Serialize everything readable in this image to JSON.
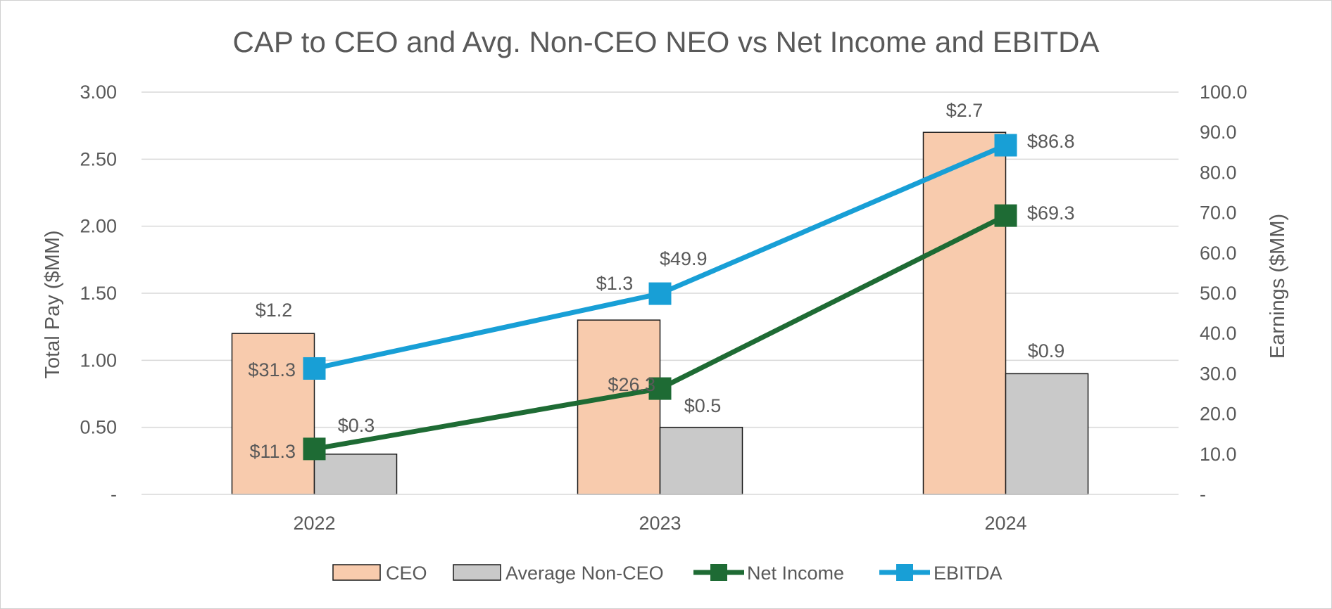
{
  "chart_data": {
    "type": "bar",
    "title": "CAP to CEO and Avg. Non-CEO NEO vs Net Income and EBITDA",
    "categories": [
      "2022",
      "2023",
      "2024"
    ],
    "y_left": {
      "label": "Total Pay ($MM)",
      "range": [
        0,
        3
      ],
      "ticks": [
        0,
        0.5,
        1,
        1.5,
        2,
        2.5,
        3
      ],
      "tick_labels": [
        "-",
        "0.50",
        "1.00",
        "1.50",
        "2.00",
        "2.50",
        "3.00"
      ]
    },
    "y_right": {
      "label": "Earnings ($MM)",
      "range": [
        0,
        100
      ],
      "ticks": [
        0,
        10,
        20,
        30,
        40,
        50,
        60,
        70,
        80,
        90,
        100
      ],
      "tick_labels": [
        "-",
        "10.0",
        "20.0",
        "30.0",
        "40.0",
        "50.0",
        "60.0",
        "70.0",
        "80.0",
        "90.0",
        "100.0"
      ]
    },
    "grid": true,
    "legend_position": "bottom",
    "series": [
      {
        "name": "CEO",
        "kind": "bar",
        "axis": "left",
        "color": "#F8CBAD",
        "values": [
          1.2,
          1.3,
          2.7
        ],
        "labels": [
          "$1.2",
          "$1.3",
          "$2.7"
        ]
      },
      {
        "name": "Average Non-CEO",
        "kind": "bar",
        "axis": "left",
        "color": "#C9C9C9",
        "values": [
          0.3,
          0.5,
          0.9
        ],
        "labels": [
          "$0.3",
          "$0.5",
          "$0.9"
        ]
      },
      {
        "name": "Net Income",
        "kind": "line",
        "axis": "right",
        "color": "#1E6B34",
        "marker": "square",
        "values": [
          11.3,
          26.3,
          69.3
        ],
        "labels": [
          "$11.3",
          "$26.3",
          "$69.3"
        ]
      },
      {
        "name": "EBITDA",
        "kind": "line",
        "axis": "right",
        "color": "#189FD6",
        "marker": "square",
        "values": [
          31.3,
          49.9,
          86.8
        ],
        "labels": [
          "$31.3",
          "$49.9",
          "$86.8"
        ]
      }
    ]
  }
}
